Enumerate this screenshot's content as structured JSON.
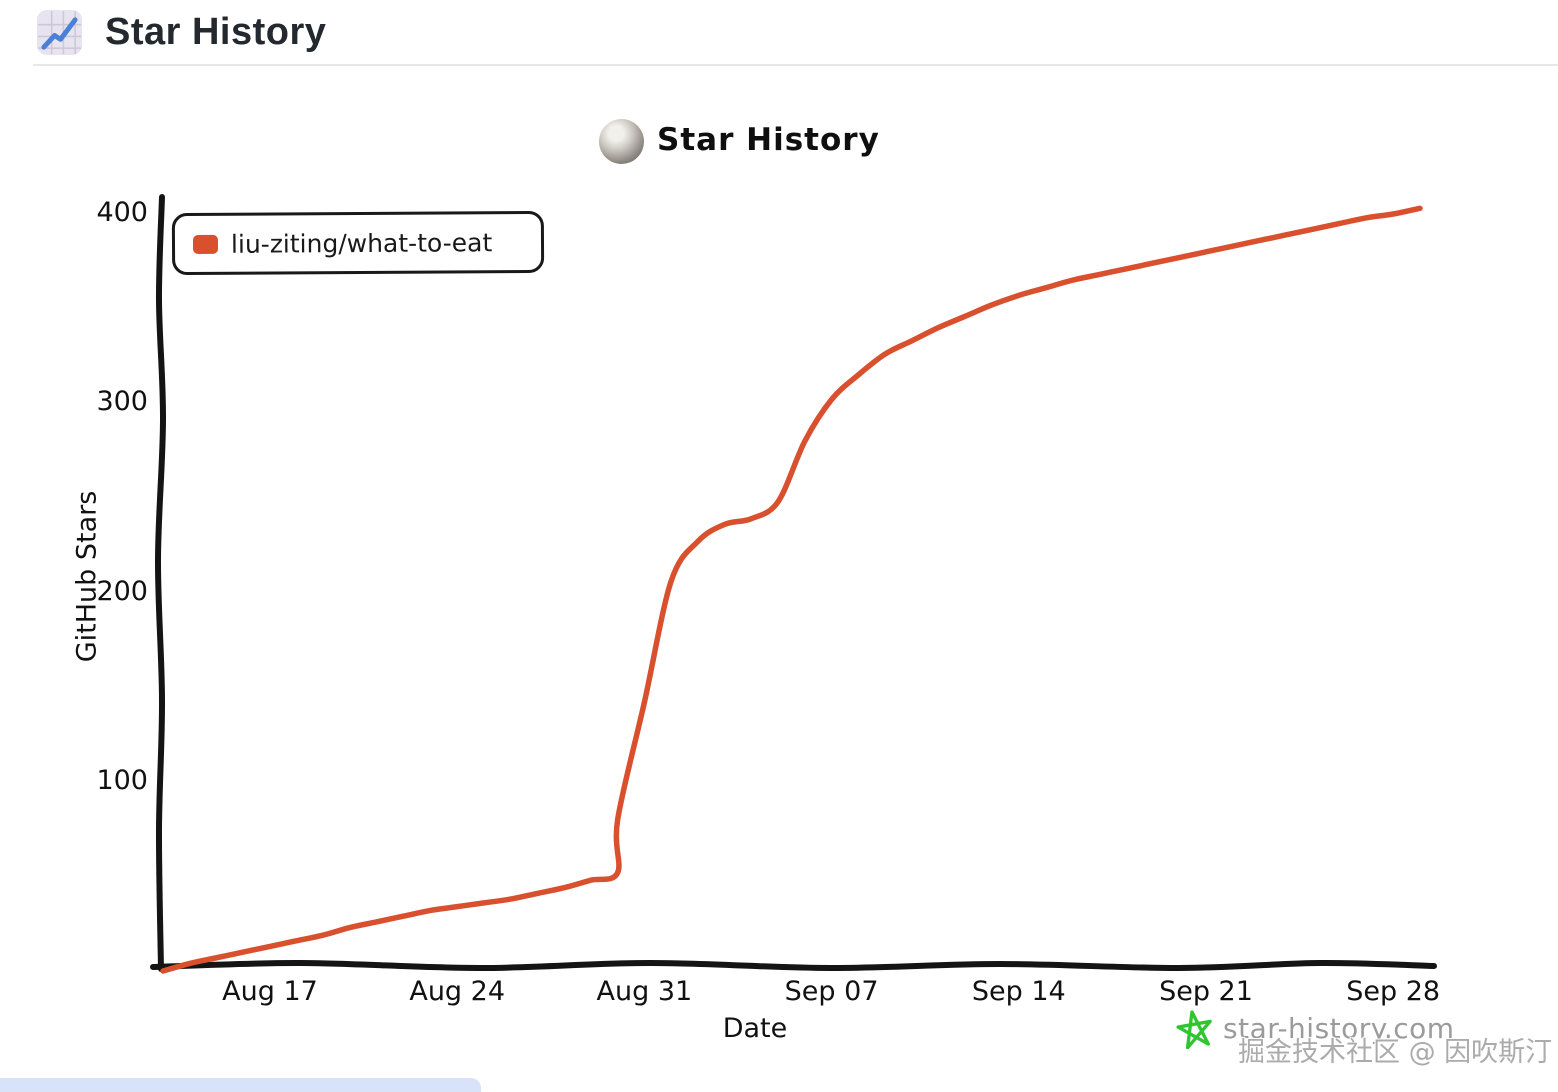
{
  "header": {
    "title": "Star History"
  },
  "chart_data": {
    "type": "line",
    "title": "Star History",
    "xlabel": "Date",
    "ylabel": "GitHub Stars",
    "ylim": [
      0,
      410
    ],
    "grid": false,
    "legend_position": "top-left",
    "x_ticks": [
      "Aug 17",
      "Aug 24",
      "Aug 31",
      "Sep 07",
      "Sep 14",
      "Sep 21",
      "Sep 28"
    ],
    "y_ticks": [
      100,
      200,
      300,
      400
    ],
    "series": [
      {
        "name": "liu-ziting/what-to-eat",
        "color": "#d9502e",
        "points": [
          {
            "date": "Aug 13",
            "stars": 0
          },
          {
            "date": "Aug 14",
            "stars": 4
          },
          {
            "date": "Aug 15",
            "stars": 7
          },
          {
            "date": "Aug 16",
            "stars": 10
          },
          {
            "date": "Aug 17",
            "stars": 13
          },
          {
            "date": "Aug 18",
            "stars": 16
          },
          {
            "date": "Aug 19",
            "stars": 19
          },
          {
            "date": "Aug 20",
            "stars": 23
          },
          {
            "date": "Aug 21",
            "stars": 26
          },
          {
            "date": "Aug 22",
            "stars": 29
          },
          {
            "date": "Aug 23",
            "stars": 32
          },
          {
            "date": "Aug 24",
            "stars": 34
          },
          {
            "date": "Aug 25",
            "stars": 36
          },
          {
            "date": "Aug 26",
            "stars": 38
          },
          {
            "date": "Aug 27",
            "stars": 41
          },
          {
            "date": "Aug 28",
            "stars": 44
          },
          {
            "date": "Aug 29",
            "stars": 48
          },
          {
            "date": "Aug 30",
            "stars": 52
          },
          {
            "date": "Aug 30",
            "stars": 80
          },
          {
            "date": "Aug 31",
            "stars": 142
          },
          {
            "date": "Sep 01",
            "stars": 206
          },
          {
            "date": "Sep 02",
            "stars": 227
          },
          {
            "date": "Sep 03",
            "stars": 236
          },
          {
            "date": "Sep 04",
            "stars": 239
          },
          {
            "date": "Sep 05",
            "stars": 248
          },
          {
            "date": "Sep 06",
            "stars": 280
          },
          {
            "date": "Sep 07",
            "stars": 302
          },
          {
            "date": "Sep 08",
            "stars": 315
          },
          {
            "date": "Sep 09",
            "stars": 326
          },
          {
            "date": "Sep 10",
            "stars": 333
          },
          {
            "date": "Sep 11",
            "stars": 340
          },
          {
            "date": "Sep 12",
            "stars": 346
          },
          {
            "date": "Sep 13",
            "stars": 352
          },
          {
            "date": "Sep 14",
            "stars": 357
          },
          {
            "date": "Sep 15",
            "stars": 361
          },
          {
            "date": "Sep 16",
            "stars": 365
          },
          {
            "date": "Sep 17",
            "stars": 368
          },
          {
            "date": "Sep 18",
            "stars": 371
          },
          {
            "date": "Sep 19",
            "stars": 374
          },
          {
            "date": "Sep 20",
            "stars": 377
          },
          {
            "date": "Sep 21",
            "stars": 380
          },
          {
            "date": "Sep 22",
            "stars": 383
          },
          {
            "date": "Sep 23",
            "stars": 386
          },
          {
            "date": "Sep 24",
            "stars": 389
          },
          {
            "date": "Sep 25",
            "stars": 392
          },
          {
            "date": "Sep 26",
            "stars": 395
          },
          {
            "date": "Sep 27",
            "stars": 398
          },
          {
            "date": "Sep 28",
            "stars": 400
          },
          {
            "date": "Sep 29",
            "stars": 403
          }
        ]
      }
    ]
  },
  "branding": {
    "site_text": "star-history.com",
    "star_color": "#2ec52e"
  },
  "watermark": {
    "text": "掘金技术社区 @ 因吹斯汀"
  },
  "colors": {
    "series": "#d9502e",
    "axis": "#141414"
  }
}
